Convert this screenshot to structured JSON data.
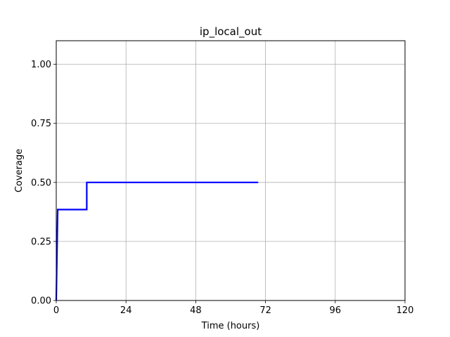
{
  "chart_data": {
    "type": "line",
    "title": "ip_local_out",
    "xlabel": "Time (hours)",
    "ylabel": "Coverage",
    "xlim": [
      0,
      120
    ],
    "ylim": [
      0,
      1.1
    ],
    "xticks": [
      0,
      24,
      48,
      72,
      96,
      120
    ],
    "xtick_labels": [
      "0",
      "24",
      "48",
      "72",
      "96",
      "120"
    ],
    "yticks": [
      0,
      0.25,
      0.5,
      0.75,
      1.0
    ],
    "ytick_labels": [
      "0.00",
      "0.25",
      "0.50",
      "0.75",
      "1.00"
    ],
    "grid": true,
    "series": [
      {
        "color": "#0000ff",
        "step": true,
        "points": [
          [
            0,
            0
          ],
          [
            0.5,
            0.385
          ],
          [
            10.5,
            0.385
          ],
          [
            10.5,
            0.5
          ],
          [
            69.5,
            0.5
          ]
        ]
      }
    ]
  }
}
